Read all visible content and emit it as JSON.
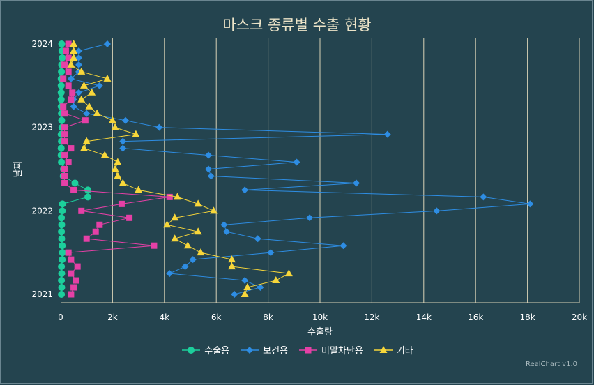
{
  "chart_data": {
    "type": "line",
    "title": "마스크 종류별 수출 현황",
    "xlabel": "수출량",
    "ylabel": "날짜",
    "xlim": [
      0,
      20000
    ],
    "x_ticks": [
      "0",
      "2k",
      "4k",
      "6k",
      "8k",
      "10k",
      "12k",
      "14k",
      "16k",
      "18k",
      "20k"
    ],
    "y_ticks": [
      "2024",
      "2023",
      "2022",
      "2021"
    ],
    "ylim": [
      "2021-01",
      "2024-01"
    ],
    "orientation": "inverted",
    "grid": "vertical",
    "legend": "bottom",
    "dates": [
      "2021-01",
      "2021-02",
      "2021-03",
      "2021-04",
      "2021-05",
      "2021-06",
      "2021-07",
      "2021-08",
      "2021-09",
      "2021-10",
      "2021-11",
      "2021-12",
      "2022-01",
      "2022-02",
      "2022-03",
      "2022-04",
      "2022-05",
      "2022-06",
      "2022-07",
      "2022-08",
      "2022-09",
      "2022-10",
      "2022-11",
      "2022-12",
      "2023-01",
      "2023-02",
      "2023-03",
      "2023-04",
      "2023-05",
      "2023-06",
      "2023-07",
      "2023-08",
      "2023-09",
      "2023-10",
      "2023-11",
      "2023-12",
      "2024-01"
    ],
    "series": [
      {
        "name": "수술용",
        "color": "#1ccf9c",
        "marker": "circle",
        "values": [
          30,
          40,
          30,
          40,
          30,
          60,
          70,
          60,
          40,
          30,
          40,
          30,
          60,
          70,
          1050,
          1050,
          550,
          100,
          110,
          30,
          20,
          20,
          30,
          20,
          50,
          40,
          30,
          20,
          20,
          20,
          20,
          20,
          30,
          40,
          60,
          50,
          40
        ]
      },
      {
        "name": "보건용",
        "color": "#2e8de3",
        "marker": "diamond",
        "values": [
          6700,
          7700,
          7100,
          4200,
          4800,
          5100,
          8100,
          10900,
          7600,
          6400,
          6300,
          9600,
          14500,
          18100,
          16300,
          7100,
          11400,
          5800,
          5700,
          9100,
          5700,
          2400,
          2400,
          12600,
          3800,
          2500,
          1000,
          500,
          500,
          700,
          1500,
          400,
          700,
          700,
          700,
          700,
          1800
        ]
      },
      {
        "name": "비말차단용",
        "color": "#e540a6",
        "marker": "square",
        "values": [
          400,
          500,
          600,
          400,
          650,
          400,
          300,
          3600,
          1000,
          1350,
          1500,
          2650,
          800,
          2350,
          4200,
          500,
          150,
          150,
          150,
          300,
          150,
          400,
          150,
          150,
          150,
          950,
          150,
          100,
          400,
          450,
          300,
          100,
          300,
          150,
          300,
          200,
          300
        ]
      },
      {
        "name": "기타",
        "color": "#f7d63a",
        "marker": "triangle",
        "values": [
          7100,
          7200,
          8300,
          8800,
          6600,
          6600,
          5400,
          4900,
          4400,
          5300,
          4100,
          4400,
          5900,
          5300,
          4500,
          3000,
          2400,
          2200,
          2100,
          2200,
          1700,
          900,
          1000,
          2900,
          2100,
          2000,
          1400,
          1100,
          800,
          1200,
          900,
          1800,
          800,
          400,
          500,
          500,
          500
        ]
      }
    ]
  },
  "credits": "RealChart v1.0"
}
